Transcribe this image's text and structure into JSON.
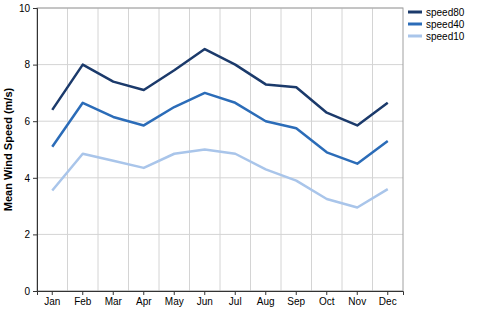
{
  "chart_data": {
    "type": "line",
    "y_label": "Mean Wind Speed (m/s)",
    "categories": [
      "Jan",
      "Feb",
      "Mar",
      "Apr",
      "May",
      "Jun",
      "Jul",
      "Aug",
      "Sep",
      "Oct",
      "Nov",
      "Dec"
    ],
    "series": [
      {
        "name": "speed80",
        "color": "#1b3a6b",
        "values": [
          6.4,
          8.0,
          7.4,
          7.1,
          7.8,
          8.55,
          8.0,
          7.3,
          7.2,
          6.3,
          5.85,
          6.65
        ]
      },
      {
        "name": "speed40",
        "color": "#2b6cb8",
        "values": [
          5.1,
          6.65,
          6.15,
          5.85,
          6.5,
          7.0,
          6.65,
          6.0,
          5.75,
          4.9,
          4.5,
          5.3
        ]
      },
      {
        "name": "speed10",
        "color": "#a9c5ea",
        "values": [
          3.55,
          4.85,
          4.6,
          4.35,
          4.85,
          5.0,
          4.85,
          4.3,
          3.9,
          3.25,
          2.95,
          3.6
        ]
      }
    ],
    "ylim": [
      0,
      10
    ],
    "yticks": [
      0,
      2,
      4,
      6,
      8,
      10
    ],
    "grid": true,
    "legend": "right"
  }
}
